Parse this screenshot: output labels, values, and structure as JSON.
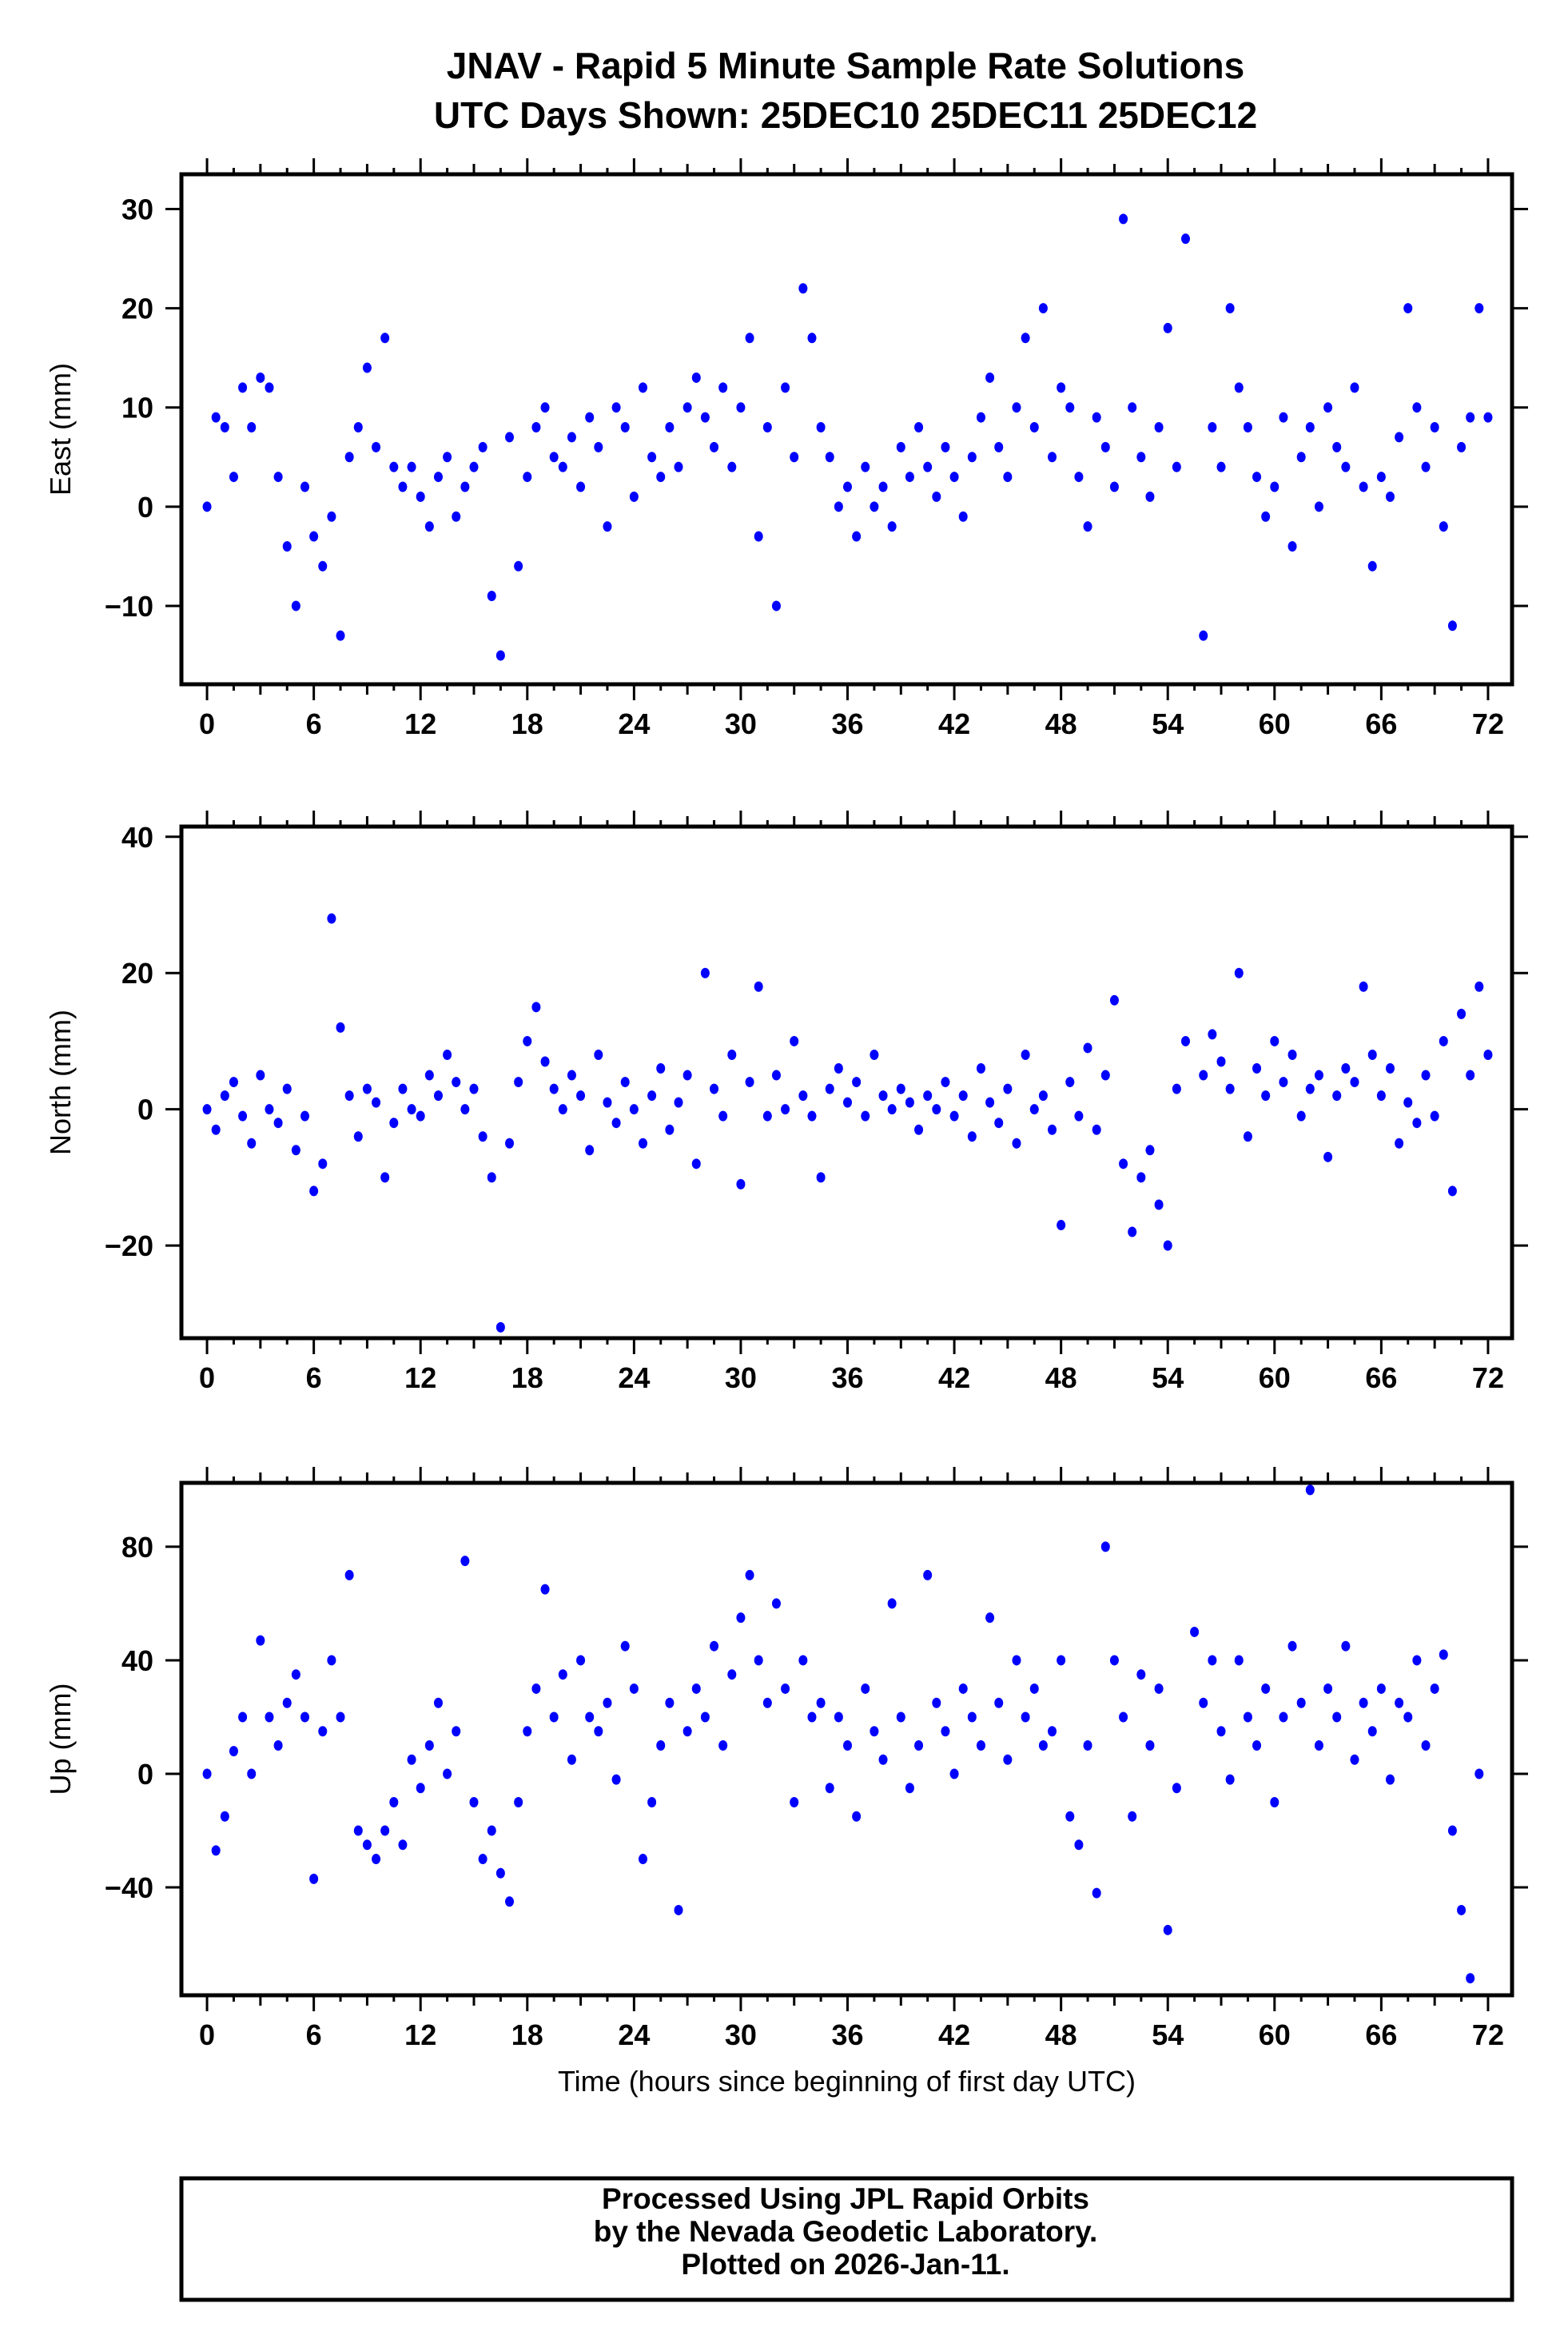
{
  "title": {
    "line1": "JNAV - Rapid 5 Minute Sample Rate Solutions",
    "line2": "UTC Days Shown:  25DEC10 25DEC11 25DEC12"
  },
  "footer": {
    "line1": "Processed Using JPL Rapid Orbits",
    "line2": "by the Nevada Geodetic Laboratory.",
    "line3": "Plotted on 2026-Jan-11."
  },
  "colors": {
    "points": "#0000ff",
    "frame": "#000000"
  },
  "chart_data": [
    {
      "type": "scatter",
      "title": "",
      "xlabel": "",
      "ylabel": "East (mm)",
      "xlim": [
        -1.44,
        73.35
      ],
      "ylim": [
        -17.9,
        33.5
      ],
      "xticks": [
        0,
        6,
        12,
        18,
        24,
        30,
        36,
        42,
        48,
        54,
        60,
        66,
        72
      ],
      "yticks": [
        30,
        20,
        10,
        0,
        -10
      ],
      "ytick_labels": [
        "30",
        "20",
        "10",
        "0",
        "−10"
      ],
      "x_start": 0,
      "x_step": 0.5,
      "y": [
        0,
        9,
        8,
        3,
        12,
        8,
        13,
        12,
        3,
        -4,
        -10,
        2,
        -3,
        -6,
        -1,
        -13,
        5,
        8,
        14,
        6,
        17,
        4,
        2,
        4,
        1,
        -2,
        3,
        5,
        -1,
        2,
        4,
        6,
        -9,
        -15,
        7,
        -6,
        3,
        8,
        10,
        5,
        4,
        7,
        2,
        9,
        6,
        -2,
        10,
        8,
        1,
        12,
        5,
        3,
        8,
        4,
        10,
        13,
        9,
        6,
        12,
        4,
        10,
        17,
        -3,
        8,
        -10,
        12,
        5,
        22,
        17,
        8,
        5,
        0,
        2,
        -3,
        4,
        0,
        2,
        -2,
        6,
        3,
        8,
        4,
        1,
        6,
        3,
        -1,
        5,
        9,
        13,
        6,
        3,
        10,
        17,
        8,
        20,
        5,
        12,
        10,
        3,
        -2,
        9,
        6,
        2,
        29,
        10,
        5,
        1,
        8,
        18,
        4,
        27,
        null,
        -13,
        8,
        4,
        20,
        12,
        8,
        3,
        -1,
        2,
        9,
        -4,
        5,
        8,
        0,
        10,
        6,
        4,
        12,
        2,
        -6,
        3,
        1,
        7,
        20,
        10,
        4,
        8,
        -2,
        -12,
        6,
        9,
        20,
        9
      ]
    },
    {
      "type": "scatter",
      "title": "",
      "xlabel": "",
      "ylabel": "North (mm)",
      "xlim": [
        -1.44,
        73.35
      ],
      "ylim": [
        -33.6,
        41.5
      ],
      "xticks": [
        0,
        6,
        12,
        18,
        24,
        30,
        36,
        42,
        48,
        54,
        60,
        66,
        72
      ],
      "yticks": [
        40,
        20,
        0,
        -20
      ],
      "ytick_labels": [
        "40",
        "20",
        "0",
        "−20"
      ],
      "x_start": 0,
      "x_step": 0.5,
      "y": [
        0,
        -3,
        2,
        4,
        -1,
        -5,
        5,
        0,
        -2,
        3,
        -6,
        -1,
        -12,
        -8,
        28,
        12,
        2,
        -4,
        3,
        1,
        -10,
        -2,
        3,
        0,
        -1,
        5,
        2,
        8,
        4,
        0,
        3,
        -4,
        -10,
        -32,
        -5,
        4,
        10,
        15,
        7,
        3,
        0,
        5,
        2,
        -6,
        8,
        1,
        -2,
        4,
        0,
        -5,
        2,
        6,
        -3,
        1,
        5,
        -8,
        20,
        3,
        -1,
        8,
        -11,
        4,
        18,
        -1,
        5,
        0,
        10,
        2,
        -1,
        -10,
        3,
        6,
        1,
        4,
        -1,
        8,
        2,
        0,
        3,
        1,
        -3,
        2,
        0,
        4,
        -1,
        2,
        -4,
        6,
        1,
        -2,
        3,
        -5,
        8,
        0,
        2,
        -3,
        -17,
        4,
        -1,
        9,
        -3,
        5,
        16,
        -8,
        -18,
        -10,
        -6,
        -14,
        -20,
        3,
        10,
        null,
        5,
        11,
        7,
        3,
        20,
        -4,
        6,
        2,
        10,
        4,
        8,
        -1,
        3,
        5,
        -7,
        2,
        6,
        4,
        18,
        8,
        2,
        6,
        -5,
        1,
        -2,
        5,
        -1,
        10,
        -12,
        14,
        5,
        18,
        8
      ]
    },
    {
      "type": "scatter",
      "title": "",
      "xlabel": "Time (hours since beginning of first day UTC)",
      "ylabel": "Up (mm)",
      "xlim": [
        -1.44,
        73.35
      ],
      "ylim": [
        -78,
        102.5
      ],
      "xticks": [
        0,
        6,
        12,
        18,
        24,
        30,
        36,
        42,
        48,
        54,
        60,
        66,
        72
      ],
      "yticks": [
        80,
        40,
        0,
        -40
      ],
      "ytick_labels": [
        "80",
        "40",
        "0",
        "−40"
      ],
      "x_start": 0,
      "x_step": 0.5,
      "y": [
        0,
        -27,
        -15,
        8,
        20,
        0,
        47,
        20,
        10,
        25,
        35,
        20,
        -37,
        15,
        40,
        20,
        70,
        -20,
        -25,
        -30,
        -20,
        -10,
        -25,
        5,
        -5,
        10,
        25,
        0,
        15,
        75,
        -10,
        -30,
        -20,
        -35,
        -45,
        -10,
        15,
        30,
        65,
        20,
        35,
        5,
        40,
        20,
        15,
        25,
        -2,
        45,
        30,
        -30,
        -10,
        10,
        25,
        -48,
        15,
        30,
        20,
        45,
        10,
        35,
        55,
        70,
        40,
        25,
        60,
        30,
        -10,
        40,
        20,
        25,
        -5,
        20,
        10,
        -15,
        30,
        15,
        5,
        60,
        20,
        -5,
        10,
        70,
        25,
        15,
        0,
        30,
        20,
        10,
        55,
        25,
        5,
        40,
        20,
        30,
        10,
        15,
        40,
        -15,
        -25,
        10,
        -42,
        80,
        40,
        20,
        -15,
        35,
        10,
        30,
        -55,
        -5,
        null,
        50,
        25,
        40,
        15,
        -2,
        40,
        20,
        10,
        30,
        -10,
        20,
        45,
        25,
        100,
        10,
        30,
        20,
        45,
        5,
        25,
        15,
        30,
        -2,
        25,
        20,
        40,
        10,
        30,
        42,
        -20,
        -48,
        -72,
        0
      ]
    }
  ]
}
